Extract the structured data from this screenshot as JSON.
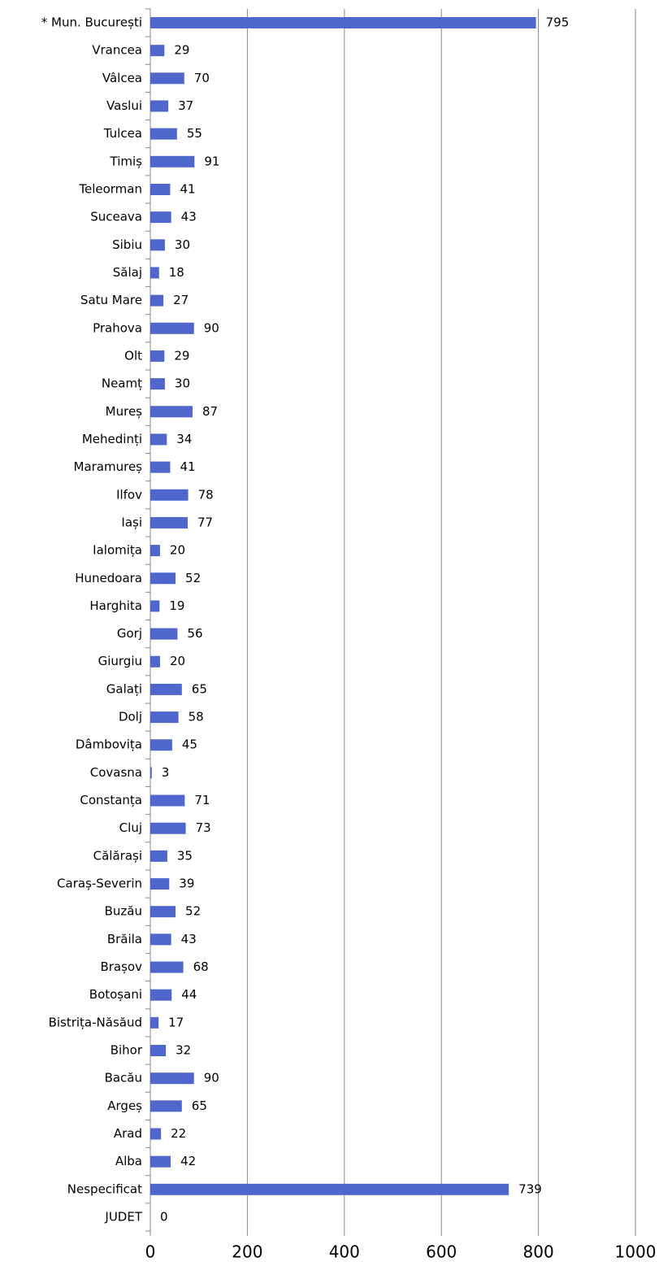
{
  "chart_data": {
    "type": "barh",
    "categories": [
      "* Mun. București",
      "Vrancea",
      "Vâlcea",
      "Vaslui",
      "Tulcea",
      "Timiș",
      "Teleorman",
      "Suceava",
      "Sibiu",
      "Sălaj",
      "Satu Mare",
      "Prahova",
      "Olt",
      "Neamț",
      "Mureș",
      "Mehedinți",
      "Maramureș",
      "Ilfov",
      "Iași",
      "Ialomița",
      "Hunedoara",
      "Harghita",
      "Gorj",
      "Giurgiu",
      "Galați",
      "Dolj",
      "Dâmbovița",
      "Covasna",
      "Constanța",
      "Cluj",
      "Călărași",
      "Caraș-Severin",
      "Buzău",
      "Brăila",
      "Brașov",
      "Botoșani",
      "Bistrița-Năsăud",
      "Bihor",
      "Bacău",
      "Argeș",
      "Arad",
      "Alba",
      "Nespecificat",
      "JUDET"
    ],
    "values": [
      795,
      29,
      70,
      37,
      55,
      91,
      41,
      43,
      30,
      18,
      27,
      90,
      29,
      30,
      87,
      34,
      41,
      78,
      77,
      20,
      52,
      19,
      56,
      20,
      65,
      58,
      45,
      3,
      71,
      73,
      35,
      39,
      52,
      43,
      68,
      44,
      17,
      32,
      90,
      65,
      22,
      42,
      739,
      0
    ],
    "color": "#4f67cc",
    "xlim": [
      0,
      1000
    ],
    "xticks": [
      0,
      200,
      400,
      600,
      800,
      1000
    ],
    "grid": true
  }
}
